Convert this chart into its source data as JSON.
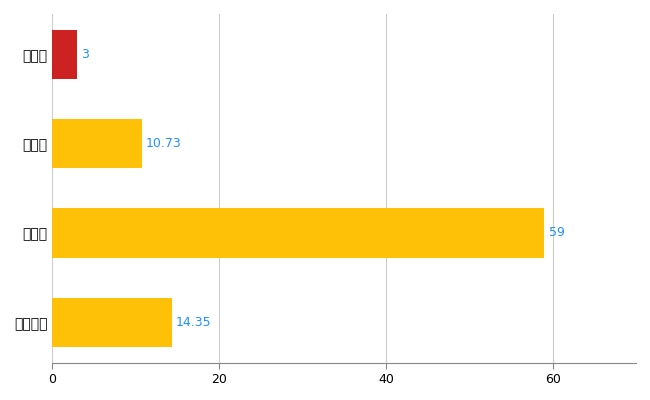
{
  "categories": [
    "野田村",
    "県平均",
    "県最大",
    "全国平均"
  ],
  "values": [
    3,
    10.73,
    59,
    14.35
  ],
  "bar_colors": [
    "#CC2222",
    "#FFC107",
    "#FFC107",
    "#FFC107"
  ],
  "value_labels": [
    "3",
    "10.73",
    "59",
    "14.35"
  ],
  "xlim": [
    0,
    70
  ],
  "xticks": [
    0,
    20,
    40,
    60
  ],
  "grid_color": "#CCCCCC",
  "background_color": "#FFFFFF",
  "label_color": "#1E90FF",
  "bar_height": 0.55,
  "figsize": [
    6.5,
    4.0
  ],
  "dpi": 100
}
